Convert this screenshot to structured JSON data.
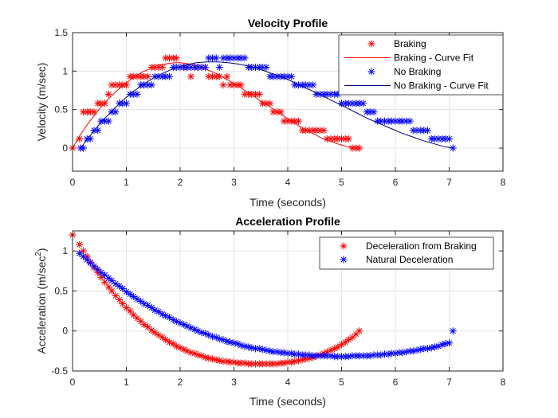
{
  "chart_data": [
    {
      "type": "scatter",
      "title": "Velocity Profile",
      "xlabel": "Time (seconds)",
      "ylabel": "Velocity (m/sec)",
      "xlim": [
        0,
        8
      ],
      "ylim": [
        -0.3,
        1.5
      ],
      "xticks": [
        0,
        1,
        2,
        3,
        4,
        5,
        6,
        7,
        8
      ],
      "yticks": [
        0,
        0.5,
        1,
        1.5
      ],
      "xtick_labels": [
        "0",
        "1",
        "2",
        "3",
        "4",
        "5",
        "6",
        "7",
        "8"
      ],
      "ytick_labels": [
        "0",
        "0.5",
        "1",
        "1.5"
      ],
      "legend_position": "top-right",
      "series": [
        {
          "name": "Braking",
          "kind": "points",
          "color": "#ff0000",
          "x": [
            0.0,
            0.13,
            0.2,
            0.27,
            0.33,
            0.4,
            0.47,
            0.53,
            0.6,
            0.67,
            0.73,
            0.8,
            0.87,
            0.93,
            1.0,
            1.07,
            1.13,
            1.2,
            1.27,
            1.33,
            1.4,
            1.47,
            1.53,
            1.6,
            1.67,
            1.73,
            1.8,
            1.87,
            1.93,
            2.0,
            2.07,
            2.13,
            2.2,
            2.27,
            2.33,
            2.4,
            2.47,
            2.53,
            2.6,
            2.67,
            2.73,
            2.8,
            2.87,
            2.93,
            3.0,
            3.07,
            3.13,
            3.2,
            3.27,
            3.33,
            3.4,
            3.47,
            3.53,
            3.6,
            3.67,
            3.73,
            3.8,
            3.87,
            3.93,
            4.0,
            4.07,
            4.13,
            4.2,
            4.27,
            4.33,
            4.4,
            4.47,
            4.53,
            4.6,
            4.67,
            4.73,
            4.8,
            4.87,
            4.93,
            5.0,
            5.07,
            5.13,
            5.2,
            5.27,
            5.33
          ],
          "y": [
            0.0,
            0.12,
            0.47,
            0.47,
            0.47,
            0.47,
            0.58,
            0.58,
            0.58,
            0.7,
            0.82,
            0.82,
            0.82,
            0.82,
            0.82,
            0.93,
            0.93,
            0.93,
            0.93,
            0.93,
            0.93,
            1.05,
            1.05,
            1.05,
            1.05,
            1.17,
            1.17,
            1.17,
            1.17,
            1.05,
            1.05,
            1.05,
            0.93,
            1.05,
            1.05,
            1.05,
            1.05,
            0.93,
            0.93,
            0.93,
            0.93,
            0.82,
            0.93,
            0.82,
            0.82,
            0.82,
            0.82,
            0.7,
            0.7,
            0.7,
            0.7,
            0.7,
            0.58,
            0.58,
            0.58,
            0.47,
            0.47,
            0.47,
            0.35,
            0.35,
            0.35,
            0.35,
            0.35,
            0.23,
            0.23,
            0.23,
            0.23,
            0.23,
            0.23,
            0.23,
            0.12,
            0.12,
            0.12,
            0.12,
            0.12,
            0.12,
            0.12,
            0.0,
            0.0,
            0.0
          ]
        },
        {
          "name": "Braking - Curve Fit",
          "kind": "curve",
          "color": "#ff0000",
          "x": [
            0.0,
            0.1,
            0.2,
            0.3,
            0.4,
            0.5,
            0.6,
            0.7,
            0.8,
            0.9,
            1.0,
            1.1,
            1.2,
            1.3,
            1.4,
            1.5,
            1.6,
            1.7,
            1.8,
            1.9,
            2.0,
            2.1,
            2.2,
            2.3,
            2.4,
            2.5,
            2.6,
            2.7,
            2.8,
            2.9,
            3.0,
            3.1,
            3.2,
            3.3,
            3.4,
            3.5,
            3.6,
            3.7,
            3.8,
            3.9,
            4.0,
            4.1,
            4.2,
            4.3,
            4.4,
            4.5,
            4.6,
            4.7,
            4.8,
            4.9,
            5.0,
            5.1,
            5.2,
            5.3
          ],
          "y": [
            0.0,
            0.12,
            0.23,
            0.33,
            0.42,
            0.51,
            0.59,
            0.66,
            0.73,
            0.79,
            0.85,
            0.9,
            0.95,
            0.99,
            1.02,
            1.05,
            1.08,
            1.09,
            1.1,
            1.11,
            1.11,
            1.1,
            1.09,
            1.07,
            1.05,
            1.02,
            0.99,
            0.96,
            0.92,
            0.88,
            0.84,
            0.8,
            0.75,
            0.71,
            0.66,
            0.61,
            0.57,
            0.52,
            0.47,
            0.43,
            0.38,
            0.34,
            0.29,
            0.25,
            0.21,
            0.18,
            0.14,
            0.11,
            0.09,
            0.06,
            0.04,
            0.02,
            0.01,
            0.0
          ]
        },
        {
          "name": " No Braking",
          "kind": "points",
          "color": "#0000ff",
          "x": [
            0.15,
            0.2,
            0.27,
            0.33,
            0.4,
            0.47,
            0.53,
            0.6,
            0.67,
            0.73,
            0.8,
            0.87,
            0.93,
            1.0,
            1.07,
            1.13,
            1.2,
            1.27,
            1.33,
            1.4,
            1.47,
            1.53,
            1.6,
            1.67,
            1.73,
            1.8,
            1.87,
            1.93,
            2.0,
            2.07,
            2.13,
            2.2,
            2.27,
            2.33,
            2.4,
            2.47,
            2.53,
            2.6,
            2.67,
            2.73,
            2.8,
            2.87,
            2.93,
            3.0,
            3.07,
            3.13,
            3.2,
            3.27,
            3.33,
            3.4,
            3.47,
            3.53,
            3.6,
            3.67,
            3.73,
            3.8,
            3.87,
            3.93,
            4.0,
            4.07,
            4.13,
            4.2,
            4.27,
            4.33,
            4.4,
            4.47,
            4.53,
            4.6,
            4.67,
            4.73,
            4.8,
            4.87,
            4.93,
            5.0,
            5.07,
            5.13,
            5.2,
            5.27,
            5.33,
            5.4,
            5.47,
            5.53,
            5.6,
            5.67,
            5.73,
            5.8,
            5.87,
            5.93,
            6.0,
            6.07,
            6.13,
            6.2,
            6.27,
            6.33,
            6.4,
            6.47,
            6.53,
            6.6,
            6.67,
            6.73,
            6.8,
            6.87,
            6.93,
            7.0,
            7.07
          ],
          "y": [
            0.0,
            0.0,
            0.12,
            0.12,
            0.23,
            0.23,
            0.35,
            0.35,
            0.35,
            0.47,
            0.47,
            0.58,
            0.58,
            0.58,
            0.7,
            0.7,
            0.7,
            0.82,
            0.82,
            0.82,
            0.82,
            0.93,
            0.93,
            0.93,
            0.93,
            0.93,
            1.05,
            1.05,
            1.05,
            1.05,
            1.05,
            1.05,
            1.05,
            1.05,
            1.05,
            1.05,
            1.17,
            1.17,
            1.17,
            1.05,
            1.17,
            1.17,
            1.17,
            1.17,
            1.17,
            1.17,
            1.17,
            1.05,
            1.05,
            1.05,
            1.05,
            1.05,
            1.05,
            0.93,
            0.93,
            0.93,
            0.93,
            0.93,
            0.93,
            0.93,
            0.82,
            0.82,
            0.82,
            0.82,
            0.82,
            0.82,
            0.7,
            0.7,
            0.7,
            0.7,
            0.7,
            0.7,
            0.7,
            0.58,
            0.58,
            0.58,
            0.58,
            0.58,
            0.58,
            0.58,
            0.47,
            0.47,
            0.47,
            0.35,
            0.35,
            0.35,
            0.35,
            0.35,
            0.35,
            0.35,
            0.35,
            0.35,
            0.35,
            0.23,
            0.23,
            0.23,
            0.23,
            0.23,
            0.12,
            0.12,
            0.12,
            0.12,
            0.12,
            0.12,
            0.0
          ]
        },
        {
          "name": "No Braking - Curve Fit",
          "kind": "curve",
          "color": "#00008b",
          "x": [
            0.15,
            0.3,
            0.5,
            0.7,
            0.9,
            1.1,
            1.3,
            1.5,
            1.7,
            1.9,
            2.1,
            2.3,
            2.5,
            2.7,
            2.9,
            3.1,
            3.3,
            3.5,
            3.7,
            3.9,
            4.1,
            4.3,
            4.5,
            4.7,
            4.9,
            5.1,
            5.3,
            5.5,
            5.7,
            5.9,
            6.1,
            6.3,
            6.5,
            6.7,
            6.9,
            7.07
          ],
          "y": [
            0.0,
            0.14,
            0.31,
            0.46,
            0.6,
            0.72,
            0.82,
            0.91,
            0.98,
            1.04,
            1.08,
            1.11,
            1.12,
            1.12,
            1.11,
            1.09,
            1.06,
            1.02,
            0.97,
            0.92,
            0.86,
            0.79,
            0.73,
            0.66,
            0.59,
            0.52,
            0.45,
            0.38,
            0.32,
            0.26,
            0.2,
            0.15,
            0.1,
            0.06,
            0.02,
            0.0
          ]
        }
      ]
    },
    {
      "type": "scatter",
      "title": "Acceleration Profile",
      "xlabel": "Time (seconds)",
      "ylabel": "Acceleration (m/sec",
      "ylabel_sup": "2",
      "ylabel_end": ")",
      "xlim": [
        0,
        8
      ],
      "ylim": [
        -0.5,
        1.25
      ],
      "xticks": [
        0,
        1,
        2,
        3,
        4,
        5,
        6,
        7,
        8
      ],
      "yticks": [
        -0.5,
        0,
        0.5,
        1
      ],
      "xtick_labels": [
        "0",
        "1",
        "2",
        "3",
        "4",
        "5",
        "6",
        "7",
        "8"
      ],
      "ytick_labels": [
        "-0.5",
        "0",
        "0.5",
        "1"
      ],
      "legend_position": "top-right",
      "series": [
        {
          "name": "Deceleration from Braking",
          "kind": "points",
          "color": "#ff0000",
          "x": [
            0.0,
            0.13,
            0.2,
            0.27,
            0.33,
            0.4,
            0.47,
            0.53,
            0.6,
            0.67,
            0.73,
            0.8,
            0.87,
            0.93,
            1.0,
            1.07,
            1.13,
            1.2,
            1.27,
            1.33,
            1.4,
            1.47,
            1.53,
            1.6,
            1.67,
            1.73,
            1.8,
            1.87,
            1.93,
            2.0,
            2.07,
            2.13,
            2.2,
            2.27,
            2.33,
            2.4,
            2.47,
            2.53,
            2.6,
            2.67,
            2.73,
            2.8,
            2.87,
            2.93,
            3.0,
            3.07,
            3.13,
            3.2,
            3.27,
            3.33,
            3.4,
            3.47,
            3.53,
            3.6,
            3.67,
            3.73,
            3.8,
            3.87,
            3.93,
            4.0,
            4.07,
            4.13,
            4.2,
            4.27,
            4.33,
            4.4,
            4.47,
            4.53,
            4.6,
            4.67,
            4.73,
            4.8,
            4.87,
            4.93,
            5.0,
            5.07,
            5.13,
            5.2,
            5.27,
            5.33
          ],
          "y": [
            1.2,
            1.08,
            1.0,
            0.93,
            0.86,
            0.79,
            0.73,
            0.67,
            0.61,
            0.55,
            0.5,
            0.44,
            0.39,
            0.34,
            0.29,
            0.25,
            0.2,
            0.16,
            0.12,
            0.08,
            0.05,
            0.01,
            -0.02,
            -0.05,
            -0.08,
            -0.11,
            -0.14,
            -0.16,
            -0.19,
            -0.21,
            -0.23,
            -0.25,
            -0.27,
            -0.28,
            -0.3,
            -0.31,
            -0.33,
            -0.34,
            -0.35,
            -0.36,
            -0.37,
            -0.38,
            -0.38,
            -0.39,
            -0.39,
            -0.4,
            -0.4,
            -0.4,
            -0.41,
            -0.41,
            -0.41,
            -0.41,
            -0.41,
            -0.41,
            -0.41,
            -0.41,
            -0.41,
            -0.4,
            -0.4,
            -0.39,
            -0.39,
            -0.38,
            -0.37,
            -0.36,
            -0.35,
            -0.34,
            -0.33,
            -0.31,
            -0.3,
            -0.28,
            -0.26,
            -0.24,
            -0.22,
            -0.2,
            -0.17,
            -0.14,
            -0.11,
            -0.08,
            -0.04,
            0.0
          ]
        },
        {
          "name": "Natural Deceleration",
          "kind": "points",
          "color": "#0000ff",
          "x": [
            0.13,
            0.2,
            0.27,
            0.33,
            0.4,
            0.47,
            0.53,
            0.6,
            0.67,
            0.73,
            0.8,
            0.87,
            0.93,
            1.0,
            1.07,
            1.13,
            1.2,
            1.27,
            1.33,
            1.4,
            1.47,
            1.53,
            1.6,
            1.67,
            1.73,
            1.8,
            1.87,
            1.93,
            2.0,
            2.07,
            2.13,
            2.2,
            2.27,
            2.33,
            2.4,
            2.47,
            2.53,
            2.6,
            2.67,
            2.73,
            2.8,
            2.87,
            2.93,
            3.0,
            3.07,
            3.13,
            3.2,
            3.27,
            3.33,
            3.4,
            3.47,
            3.53,
            3.6,
            3.67,
            3.73,
            3.8,
            3.87,
            3.93,
            4.0,
            4.07,
            4.13,
            4.2,
            4.27,
            4.33,
            4.4,
            4.47,
            4.53,
            4.6,
            4.67,
            4.73,
            4.8,
            4.87,
            4.93,
            5.0,
            5.07,
            5.13,
            5.2,
            5.27,
            5.33,
            5.4,
            5.47,
            5.53,
            5.6,
            5.67,
            5.73,
            5.8,
            5.87,
            5.93,
            6.0,
            6.07,
            6.13,
            6.2,
            6.27,
            6.33,
            6.4,
            6.47,
            6.53,
            6.6,
            6.67,
            6.73,
            6.8,
            6.87,
            6.93,
            7.0,
            7.07
          ],
          "y": [
            0.97,
            0.93,
            0.89,
            0.85,
            0.81,
            0.77,
            0.73,
            0.7,
            0.66,
            0.63,
            0.59,
            0.56,
            0.53,
            0.49,
            0.46,
            0.43,
            0.4,
            0.37,
            0.34,
            0.32,
            0.29,
            0.26,
            0.24,
            0.21,
            0.19,
            0.17,
            0.14,
            0.12,
            0.1,
            0.08,
            0.06,
            0.04,
            0.02,
            0.0,
            -0.02,
            -0.03,
            -0.05,
            -0.07,
            -0.08,
            -0.1,
            -0.11,
            -0.13,
            -0.14,
            -0.15,
            -0.16,
            -0.18,
            -0.19,
            -0.2,
            -0.21,
            -0.22,
            -0.22,
            -0.23,
            -0.24,
            -0.25,
            -0.26,
            -0.26,
            -0.27,
            -0.27,
            -0.28,
            -0.28,
            -0.29,
            -0.29,
            -0.3,
            -0.3,
            -0.3,
            -0.31,
            -0.31,
            -0.31,
            -0.31,
            -0.31,
            -0.31,
            -0.32,
            -0.32,
            -0.32,
            -0.32,
            -0.32,
            -0.31,
            -0.31,
            -0.31,
            -0.31,
            -0.31,
            -0.31,
            -0.3,
            -0.3,
            -0.3,
            -0.29,
            -0.29,
            -0.28,
            -0.28,
            -0.27,
            -0.27,
            -0.26,
            -0.25,
            -0.25,
            -0.24,
            -0.23,
            -0.22,
            -0.22,
            -0.21,
            -0.2,
            -0.19,
            -0.17,
            -0.16,
            -0.15,
            0.0
          ]
        }
      ]
    }
  ]
}
